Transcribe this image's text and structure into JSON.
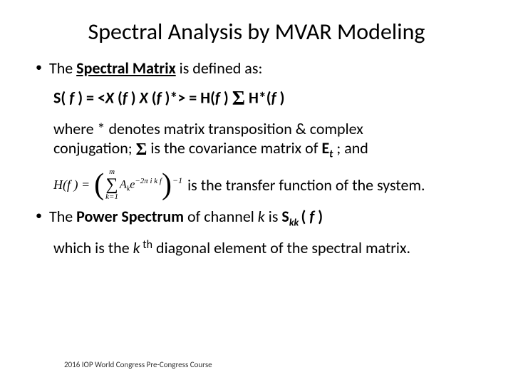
{
  "title": "Spectral Analysis by MVAR Modeling",
  "bullet1": {
    "pre": "The ",
    "bold": "Spectral Matrix",
    "post": " is defined as:"
  },
  "equation": {
    "lhs_S": "S(",
    "lhs_f": " f ",
    "lhs_eq": ") = <",
    "X1": "X ",
    "open1": "(",
    "f1": "f ",
    "close1": ") ",
    "X2": "X ",
    "open2": "(",
    "f2": "f ",
    "close2": ")*> = H(",
    "f3": "f ",
    "mid": ") ",
    "sigma": "Σ",
    "Hstar": " H*(",
    "f4": "f ",
    "end": ")"
  },
  "where": {
    "line1a": "where * denotes matrix transposition & complex",
    "line2a": "conjugation; ",
    "sigma": "Σ",
    "line2b": " is the covariance matrix of ",
    "E": "E",
    "t": "t",
    "line2c": " ; and"
  },
  "transfer": {
    "Hf": "H(f ) =",
    "sum_top": "m",
    "sum_sigma": "∑",
    "sum_bot": "k=1",
    "term_A": "A",
    "term_k": "k",
    "term_e": "e",
    "term_exp": "−2π i k f",
    "inv": "−1",
    "text": " is the transfer function of the system."
  },
  "bullet2": {
    "pre": "The ",
    "bold": "Power Spectrum",
    "mid": " of channel ",
    "k": "k",
    "is": " is ",
    "S": "S",
    "kk": "kk ",
    "open": "( ",
    "f": "f ",
    "close": ")"
  },
  "which": {
    "a": "which is the ",
    "k": "k",
    "th": " th",
    "b": " diagonal element of the spectral matrix."
  },
  "footer": "2016 IOP World Congress Pre-Congress Course"
}
